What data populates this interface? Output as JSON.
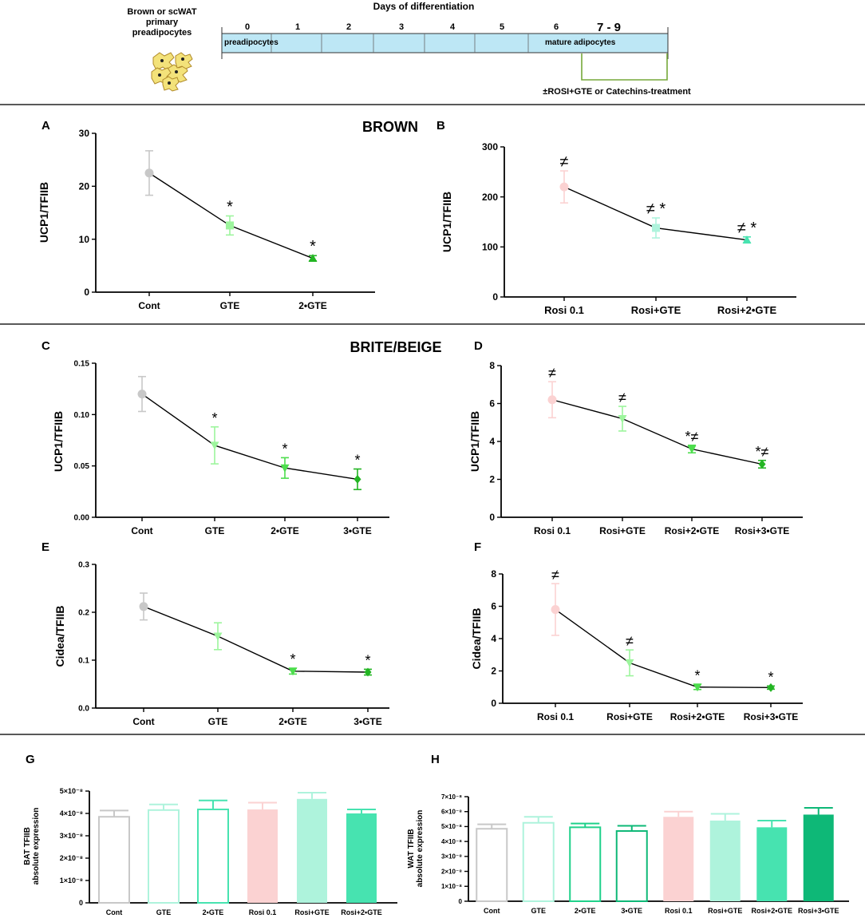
{
  "header": {
    "cells_label": [
      "Brown or scWAT",
      "primary",
      "preadipocytes"
    ],
    "timeline_title": "Days of differentiation",
    "days": [
      "0",
      "1",
      "2",
      "3",
      "4",
      "5",
      "6",
      "7 - 9"
    ],
    "start_label": "preadipocytes",
    "end_label": "mature adipocytes",
    "treatment_label": "±ROSI+GTE or Catechins-treatment"
  },
  "sections": {
    "brown": "BROWN",
    "beige": "BRITE/BEIGE"
  },
  "colors": {
    "grey": "#c8c8c8",
    "pink": "#fbd2d2",
    "light_green": "#9df59d",
    "green": "#4ddd4d",
    "dark_green": "#23b523",
    "mint": "#aef3dc",
    "aqua": "#47e3b0",
    "teal": "#0eb877",
    "timeline_fill": "#bde7f5",
    "bracket": "#76a83a"
  },
  "chart_data": [
    {
      "id": "A",
      "letter": "A",
      "type": "line",
      "ylabel": "UCP1/TFIIB",
      "ylim": [
        0,
        30
      ],
      "ticks": [
        "0",
        "10",
        "20",
        "30"
      ],
      "categories": [
        "Cont",
        "GTE",
        "2•GTE"
      ],
      "values": [
        22.5,
        12.6,
        6.4
      ],
      "errors": [
        4.2,
        1.8,
        0.5
      ],
      "colors": [
        "#c8c8c8",
        "#9df59d",
        "#23b523"
      ],
      "markers": [
        "circle",
        "square",
        "triangle-up"
      ],
      "annotations": [
        "",
        "*",
        "*"
      ]
    },
    {
      "id": "B",
      "letter": "B",
      "type": "line",
      "ylabel": "UCP1/TFIIB",
      "ylim": [
        0,
        300
      ],
      "ticks": [
        "0",
        "100",
        "200",
        "300"
      ],
      "categories": [
        "Rosi 0.1",
        "Rosi+GTE",
        "Rosi+2•GTE"
      ],
      "values": [
        220,
        138,
        114
      ],
      "errors": [
        32,
        20,
        6
      ],
      "colors": [
        "#fbd2d2",
        "#aef3dc",
        "#47e3b0"
      ],
      "markers": [
        "circle",
        "square",
        "triangle-up"
      ],
      "annotations": [
        "≠",
        "≠ *",
        "≠ *"
      ]
    },
    {
      "id": "C",
      "letter": "C",
      "type": "line",
      "ylabel": "UCP1/TFIIB",
      "ylim": [
        0,
        0.15
      ],
      "ticks": [
        "0.00",
        "0.05",
        "0.10",
        "0.15"
      ],
      "categories": [
        "Cont",
        "GTE",
        "2•GTE",
        "3•GTE"
      ],
      "values": [
        0.12,
        0.07,
        0.048,
        0.037
      ],
      "errors": [
        0.017,
        0.018,
        0.01,
        0.01
      ],
      "colors": [
        "#c8c8c8",
        "#9df59d",
        "#4ddd4d",
        "#23b523"
      ],
      "markers": [
        "circle",
        "triangle-down",
        "triangle-down",
        "diamond"
      ],
      "annotations": [
        "",
        "*",
        "*",
        "*"
      ]
    },
    {
      "id": "D",
      "letter": "D",
      "type": "line",
      "ylabel": "UCP1/TFIIB",
      "ylim": [
        0,
        8
      ],
      "ticks": [
        "0",
        "2",
        "4",
        "6",
        "8"
      ],
      "categories": [
        "Rosi 0.1",
        "Rosi+GTE",
        "Rosi+2•GTE",
        "Rosi+3•GTE"
      ],
      "values": [
        6.2,
        5.2,
        3.6,
        2.8
      ],
      "errors": [
        0.95,
        0.65,
        0.2,
        0.2
      ],
      "colors": [
        "#fbd2d2",
        "#9df59d",
        "#4ddd4d",
        "#23b523"
      ],
      "markers": [
        "circle",
        "triangle-down",
        "triangle-down",
        "diamond"
      ],
      "annotations": [
        "≠",
        "≠",
        "*≠",
        "*≠"
      ]
    },
    {
      "id": "E",
      "letter": "E",
      "type": "line",
      "ylabel": "Cidea/TFIIB",
      "ylim": [
        0,
        0.3
      ],
      "ticks": [
        "0.0",
        "0.1",
        "0.2",
        "0.3"
      ],
      "categories": [
        "Cont",
        "GTE",
        "2•GTE",
        "3•GTE"
      ],
      "values": [
        0.212,
        0.15,
        0.077,
        0.075
      ],
      "errors": [
        0.028,
        0.028,
        0.006,
        0.006
      ],
      "colors": [
        "#c8c8c8",
        "#9df59d",
        "#4ddd4d",
        "#23b523"
      ],
      "markers": [
        "circle",
        "triangle-down",
        "triangle-down",
        "diamond"
      ],
      "annotations": [
        "",
        "",
        "*",
        "*"
      ]
    },
    {
      "id": "F",
      "letter": "F",
      "type": "line",
      "ylabel": "Cidea/TFIIB",
      "ylim": [
        0,
        8
      ],
      "ticks": [
        "0",
        "2",
        "4",
        "6",
        "8"
      ],
      "categories": [
        "Rosi 0.1",
        "Rosi+GTE",
        "Rosi+2•GTE",
        "Rosi+3•GTE"
      ],
      "values": [
        5.8,
        2.5,
        1.0,
        0.97
      ],
      "errors": [
        1.6,
        0.8,
        0.15,
        0.1
      ],
      "colors": [
        "#fbd2d2",
        "#9df59d",
        "#4ddd4d",
        "#23b523"
      ],
      "markers": [
        "circle",
        "triangle-down",
        "triangle-down",
        "diamond"
      ],
      "annotations": [
        "≠",
        "≠",
        "*",
        "*"
      ]
    },
    {
      "id": "G",
      "letter": "G",
      "type": "bar",
      "ylabel": [
        "BAT TFIIB",
        "absolute expression"
      ],
      "ylim": [
        0,
        5
      ],
      "ticks": [
        "0",
        "1×10⁻⁸",
        "2×10⁻⁸",
        "3×10⁻⁸",
        "4×10⁻⁸",
        "5×10⁻⁸"
      ],
      "categories": [
        "Cont",
        "GTE",
        "2•GTE",
        "Rosi 0.1",
        "Rosi+GTE",
        "Rosi+2•GTE"
      ],
      "values": [
        3.85,
        4.15,
        4.18,
        4.18,
        4.65,
        4.0
      ],
      "errors": [
        0.28,
        0.25,
        0.4,
        0.3,
        0.28,
        0.18
      ],
      "colors": [
        "#c8c8c8",
        "#aef3dc",
        "#47e3b0",
        "#fbd2d2",
        "#aef3dc",
        "#47e3b0"
      ],
      "filled": [
        false,
        false,
        false,
        true,
        true,
        true
      ]
    },
    {
      "id": "H",
      "letter": "H",
      "type": "bar",
      "ylabel": [
        "WAT TFIIB",
        "absolute expression"
      ],
      "ylim": [
        0,
        7
      ],
      "ticks": [
        "0",
        "1×10⁻⁸",
        "2×10⁻⁸",
        "3×10⁻⁸",
        "4×10⁻⁸",
        "5×10⁻⁸",
        "6×10⁻⁸",
        "7×10⁻⁸"
      ],
      "categories": [
        "Cont",
        "GTE",
        "2•GTE",
        "3•GTE",
        "Rosi 0.1",
        "Rosi+GTE",
        "Rosi+2•GTE",
        "Rosi+3•GTE"
      ],
      "values": [
        4.85,
        5.25,
        4.95,
        4.7,
        5.65,
        5.4,
        4.95,
        5.8
      ],
      "errors": [
        0.3,
        0.4,
        0.25,
        0.35,
        0.35,
        0.45,
        0.45,
        0.45
      ],
      "colors": [
        "#c8c8c8",
        "#aef3dc",
        "#1fd18a",
        "#0eb877",
        "#fbd2d2",
        "#aef3dc",
        "#47e3b0",
        "#0eb877"
      ],
      "filled": [
        false,
        false,
        false,
        false,
        true,
        true,
        true,
        true
      ]
    }
  ]
}
